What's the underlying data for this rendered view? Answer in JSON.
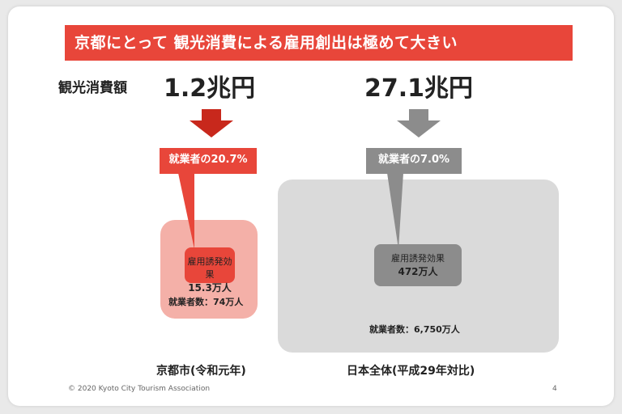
{
  "title": "京都にとって 観光消費による雇用創出は極めて大きい",
  "tourism_label": "観光消費額",
  "kyoto": {
    "amount": "1.2兆円",
    "callout": "就業者の20.7%",
    "effect_label": "雇用誘発効果",
    "effect_value": "15.3万人",
    "workers": "就業者数：74万人",
    "caption": "京都市(令和元年)"
  },
  "japan": {
    "amount": "27.1兆円",
    "callout": "就業者の7.0%",
    "effect_label": "雇用誘発効果",
    "effect_value": "472万人",
    "workers": "就業者数：6,750万人",
    "caption": "日本全体(平成29年対比)"
  },
  "footer": {
    "copyright": "© 2020 Kyoto City Tourism Association",
    "page_number": "4"
  },
  "colors": {
    "accent_red": "#e8463a",
    "dark_red": "#c8281c",
    "light_red": "#f4b0a8",
    "gray_dark": "#8c8c8c",
    "gray_light": "#dadada"
  }
}
